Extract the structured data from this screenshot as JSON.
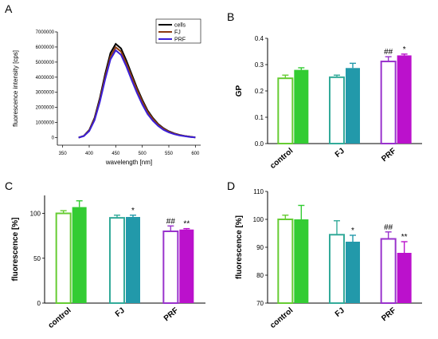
{
  "panels": {
    "A": "A",
    "B": "B",
    "C": "C",
    "D": "D"
  },
  "chart_data": [
    {
      "panel": "A",
      "type": "line",
      "xlabel": "wavelength [nm]",
      "ylabel": "fluorescence intensity [cps]",
      "xlim": [
        340,
        610
      ],
      "ylim": [
        -500000,
        7000000
      ],
      "xticks": [
        "350",
        "400",
        "450",
        "500",
        "550",
        "600"
      ],
      "yticks": [
        "0",
        "1000000",
        "2000000",
        "3000000",
        "4000000",
        "5000000",
        "6000000",
        "7000000"
      ],
      "legend_position": "top-right",
      "x": [
        380,
        390,
        400,
        410,
        420,
        430,
        440,
        450,
        460,
        470,
        480,
        490,
        500,
        510,
        520,
        530,
        540,
        550,
        560,
        570,
        580,
        590,
        600
      ],
      "series": [
        {
          "name": "cells",
          "color": "#000000",
          "values": [
            0,
            120000,
            500000,
            1300000,
            2600000,
            4200000,
            5600000,
            6200000,
            5900000,
            5100000,
            4200000,
            3300000,
            2500000,
            1800000,
            1300000,
            900000,
            620000,
            420000,
            280000,
            180000,
            110000,
            60000,
            20000
          ]
        },
        {
          "name": "FJ",
          "color": "#8b3a10",
          "values": [
            0,
            110000,
            470000,
            1230000,
            2480000,
            4020000,
            5380000,
            5980000,
            5700000,
            4920000,
            4050000,
            3180000,
            2400000,
            1720000,
            1240000,
            860000,
            590000,
            400000,
            265000,
            170000,
            105000,
            55000,
            18000
          ]
        },
        {
          "name": "PRF",
          "color": "#3a1fd8",
          "values": [
            0,
            100000,
            430000,
            1150000,
            2350000,
            3850000,
            5180000,
            5780000,
            5480000,
            4700000,
            3820000,
            2960000,
            2200000,
            1560000,
            1110000,
            770000,
            520000,
            350000,
            230000,
            145000,
            90000,
            45000,
            15000
          ]
        }
      ]
    },
    {
      "panel": "B",
      "type": "bar",
      "ylabel": "GP",
      "ylim": [
        0.0,
        0.4
      ],
      "yticks": [
        "0.0",
        "0.1",
        "0.2",
        "0.3",
        "0.4"
      ],
      "categories": [
        "control",
        "FJ",
        "PRF"
      ],
      "series": [
        {
          "color_open": [
            "#66cc33",
            "#33aa99",
            "#9933cc"
          ],
          "values": [
            0.248,
            0.252,
            0.312
          ],
          "errors": [
            0.012,
            0.008,
            0.018
          ],
          "style": "open"
        },
        {
          "color_fill": [
            "#33cc33",
            "#2299aa",
            "#bb11cc"
          ],
          "values": [
            0.28,
            0.287,
            0.335
          ],
          "errors": [
            0.008,
            0.018,
            0.005
          ],
          "style": "filled"
        }
      ],
      "significance": [
        {
          "category": 2,
          "bar": 0,
          "label": "##"
        },
        {
          "category": 2,
          "bar": 1,
          "label": "*"
        }
      ]
    },
    {
      "panel": "C",
      "type": "bar",
      "ylabel": "fluorescence [%]",
      "ylim": [
        0,
        120
      ],
      "yticks": [
        "0",
        "50",
        "100"
      ],
      "categories": [
        "control",
        "FJ",
        "PRF"
      ],
      "series": [
        {
          "values": [
            100,
            95,
            80
          ],
          "errors": [
            3,
            3,
            6
          ],
          "style": "open"
        },
        {
          "values": [
            107,
            96,
            82
          ],
          "errors": [
            7,
            2,
            1
          ],
          "style": "filled"
        }
      ],
      "significance": [
        {
          "category": 1,
          "bar": 1,
          "label": "*"
        },
        {
          "category": 2,
          "bar": 0,
          "label": "##"
        },
        {
          "category": 2,
          "bar": 1,
          "label": "**"
        }
      ]
    },
    {
      "panel": "D",
      "type": "bar",
      "ylabel": "fluorescence [%]",
      "ylim": [
        70,
        110
      ],
      "yticks": [
        "70",
        "80",
        "90",
        "100",
        "110"
      ],
      "categories": [
        "control",
        "FJ",
        "PRF"
      ],
      "series": [
        {
          "values": [
            100,
            94.5,
            93
          ],
          "errors": [
            1.5,
            5,
            2.5
          ],
          "style": "open"
        },
        {
          "values": [
            100,
            92,
            88
          ],
          "errors": [
            5,
            2.3,
            4
          ],
          "style": "filled"
        }
      ],
      "significance": [
        {
          "category": 1,
          "bar": 1,
          "label": "*"
        },
        {
          "category": 2,
          "bar": 0,
          "label": "##"
        },
        {
          "category": 2,
          "bar": 1,
          "label": "**"
        }
      ]
    }
  ]
}
